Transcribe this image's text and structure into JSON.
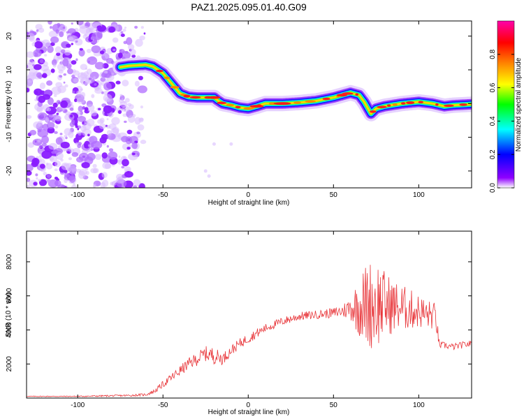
{
  "title": "PAZ1.2025.095.01.40.G09",
  "chart_data": [
    {
      "type": "heatmap",
      "title": "PAZ1.2025.095.01.40.G09",
      "xlabel": "Height of straight line (km)",
      "ylabel": "Frequency (Hz)",
      "xlim": [
        -130,
        131
      ],
      "ylim": [
        -25,
        24.5
      ],
      "xticks": [
        -100,
        -50,
        0,
        50,
        100
      ],
      "yticks": [
        -20,
        -10,
        0,
        10,
        20
      ],
      "colorbar": {
        "label": "Normalized spectral amplitude",
        "range": [
          0.0,
          1.0
        ],
        "ticks": [
          0.0,
          0.2,
          0.4,
          0.6,
          0.8
        ],
        "colors": [
          "#ffffff",
          "#8f00ff",
          "#0000ff",
          "#00ffff",
          "#00ff00",
          "#ffff00",
          "#ff8000",
          "#ff0000",
          "#ff00aa"
        ]
      },
      "ridge": {
        "x": [
          -75,
          -70,
          -60,
          -56,
          -50,
          -45,
          -40,
          -35,
          -30,
          -20,
          -18,
          -15,
          -10,
          -5,
          0,
          5,
          10,
          20,
          30,
          40,
          50,
          55,
          60,
          65,
          68,
          72,
          75,
          80,
          90,
          100,
          108,
          115,
          120,
          131
        ],
        "freq": [
          10.8,
          11.2,
          11.5,
          11.0,
          9.0,
          6.0,
          3.0,
          2.0,
          1.8,
          1.8,
          1.0,
          0.0,
          -0.5,
          -1.2,
          -1.5,
          -0.8,
          0.0,
          0.0,
          0.3,
          0.8,
          1.8,
          2.5,
          3.2,
          2.5,
          0.5,
          -3.0,
          -1.5,
          -0.8,
          0.0,
          0.5,
          0.0,
          -0.8,
          -0.5,
          -0.2
        ]
      },
      "noise_region_x": [
        -130,
        -60
      ]
    },
    {
      "type": "line",
      "xlabel": "Height of straight line (km)",
      "ylabel": "SNR (10 * v/v)",
      "xlim": [
        -130,
        131
      ],
      "ylim": [
        0,
        9800
      ],
      "xticks": [
        -100,
        -50,
        0,
        50,
        100
      ],
      "yticks": [
        2000,
        4000,
        6000,
        8000
      ],
      "color": "#e8363a",
      "series": [
        {
          "x": [
            -130,
            -100,
            -70,
            -60,
            -55,
            -50,
            -45,
            -40,
            -35,
            -30,
            -25,
            -20,
            -15,
            -10,
            -5,
            0,
            10,
            20,
            30,
            40,
            50,
            55,
            60,
            65,
            70,
            75,
            80,
            85,
            90,
            95,
            100,
            105,
            110,
            112,
            115,
            120,
            125,
            131
          ],
          "values": [
            100,
            100,
            150,
            200,
            400,
            800,
            1200,
            1600,
            2000,
            2300,
            2600,
            2500,
            2300,
            2800,
            3200,
            3500,
            4100,
            4500,
            4800,
            4900,
            5000,
            5100,
            5300,
            5400,
            5500,
            5600,
            5500,
            5400,
            5300,
            5200,
            5100,
            4900,
            4800,
            3100,
            3100,
            3000,
            3100,
            3200
          ],
          "oscillation_amplitude": [
            20,
            30,
            60,
            80,
            120,
            200,
            250,
            300,
            350,
            400,
            450,
            500,
            350,
            300,
            300,
            300,
            250,
            250,
            250,
            250,
            300,
            400,
            700,
            1800,
            2600,
            2800,
            2000,
            1600,
            1400,
            1200,
            1000,
            900,
            800,
            200,
            200,
            200,
            200,
            200
          ]
        }
      ]
    }
  ]
}
